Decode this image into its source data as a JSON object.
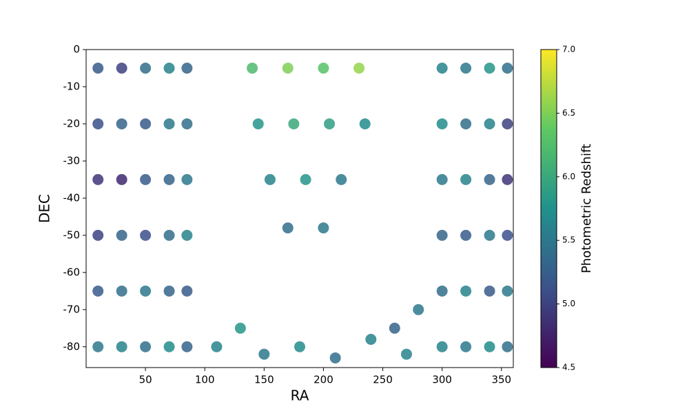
{
  "chart_data": {
    "type": "scatter",
    "x_label": "RA",
    "y_label": "DEC",
    "colorbar_label": "Photometric Redshift",
    "x": [
      10,
      30,
      50,
      70,
      85,
      10,
      30,
      50,
      70,
      85,
      10,
      30,
      50,
      70,
      85,
      10,
      30,
      50,
      70,
      85,
      10,
      30,
      50,
      70,
      85,
      10,
      30,
      50,
      70,
      85,
      300,
      320,
      340,
      355,
      300,
      320,
      340,
      355,
      300,
      320,
      340,
      355,
      300,
      320,
      340,
      355,
      300,
      320,
      340,
      355,
      300,
      320,
      340,
      355,
      140,
      170,
      200,
      230,
      145,
      175,
      205,
      235,
      155,
      185,
      215,
      170,
      200,
      110,
      130,
      150,
      180,
      210,
      240,
      260,
      280,
      270
    ],
    "values": [
      -5,
      -5,
      -5,
      -5,
      -5,
      -20,
      -20,
      -20,
      -20,
      -20,
      -35,
      -35,
      -35,
      -35,
      -35,
      -50,
      -50,
      -50,
      -50,
      -50,
      -65,
      -65,
      -65,
      -65,
      -65,
      -80,
      -80,
      -80,
      -80,
      -80,
      -5,
      -5,
      -5,
      -5,
      -20,
      -20,
      -20,
      -20,
      -35,
      -35,
      -35,
      -35,
      -50,
      -50,
      -50,
      -50,
      -65,
      -65,
      -65,
      -65,
      -80,
      -80,
      -80,
      -80,
      -5,
      -5,
      -5,
      -5,
      -20,
      -20,
      -20,
      -20,
      -35,
      -35,
      -35,
      -48,
      -48,
      -80,
      -75,
      -82,
      -80,
      -83,
      -78,
      -75,
      -70,
      -82
    ],
    "color_values": [
      5.2,
      5.0,
      5.4,
      5.6,
      5.3,
      5.1,
      5.3,
      5.2,
      5.5,
      5.4,
      4.9,
      4.8,
      5.2,
      5.3,
      5.5,
      5.0,
      5.3,
      5.1,
      5.4,
      5.6,
      5.2,
      5.4,
      5.5,
      5.3,
      5.2,
      5.5,
      5.6,
      5.4,
      5.7,
      5.3,
      5.6,
      5.5,
      5.8,
      5.4,
      5.7,
      5.4,
      5.6,
      5.0,
      5.5,
      5.6,
      5.3,
      4.9,
      5.3,
      5.2,
      5.5,
      5.1,
      5.4,
      5.6,
      5.2,
      5.5,
      5.6,
      5.5,
      5.7,
      5.4,
      6.2,
      6.5,
      6.3,
      6.6,
      5.8,
      6.0,
      5.9,
      5.7,
      5.6,
      5.8,
      5.5,
      5.4,
      5.5,
      5.6,
      5.8,
      5.5,
      5.7,
      5.4,
      5.6,
      5.3,
      5.5,
      5.6
    ],
    "colormap": "viridis",
    "xlim": [
      0,
      360
    ],
    "ylim": [
      -85.6,
      0
    ],
    "xticks": [
      50,
      100,
      150,
      200,
      250,
      300,
      350
    ],
    "yticks": [
      0,
      -10,
      -20,
      -30,
      -40,
      -50,
      -60,
      -70,
      -80
    ],
    "clim": [
      4.5,
      7.0
    ],
    "cticks": [
      4.5,
      {
        "value": 5,
        "label": "5.0"
      },
      5.5,
      {
        "value": 6,
        "label": "6.0"
      },
      6.5,
      {
        "value": 7,
        "label": "7.0"
      }
    ]
  }
}
